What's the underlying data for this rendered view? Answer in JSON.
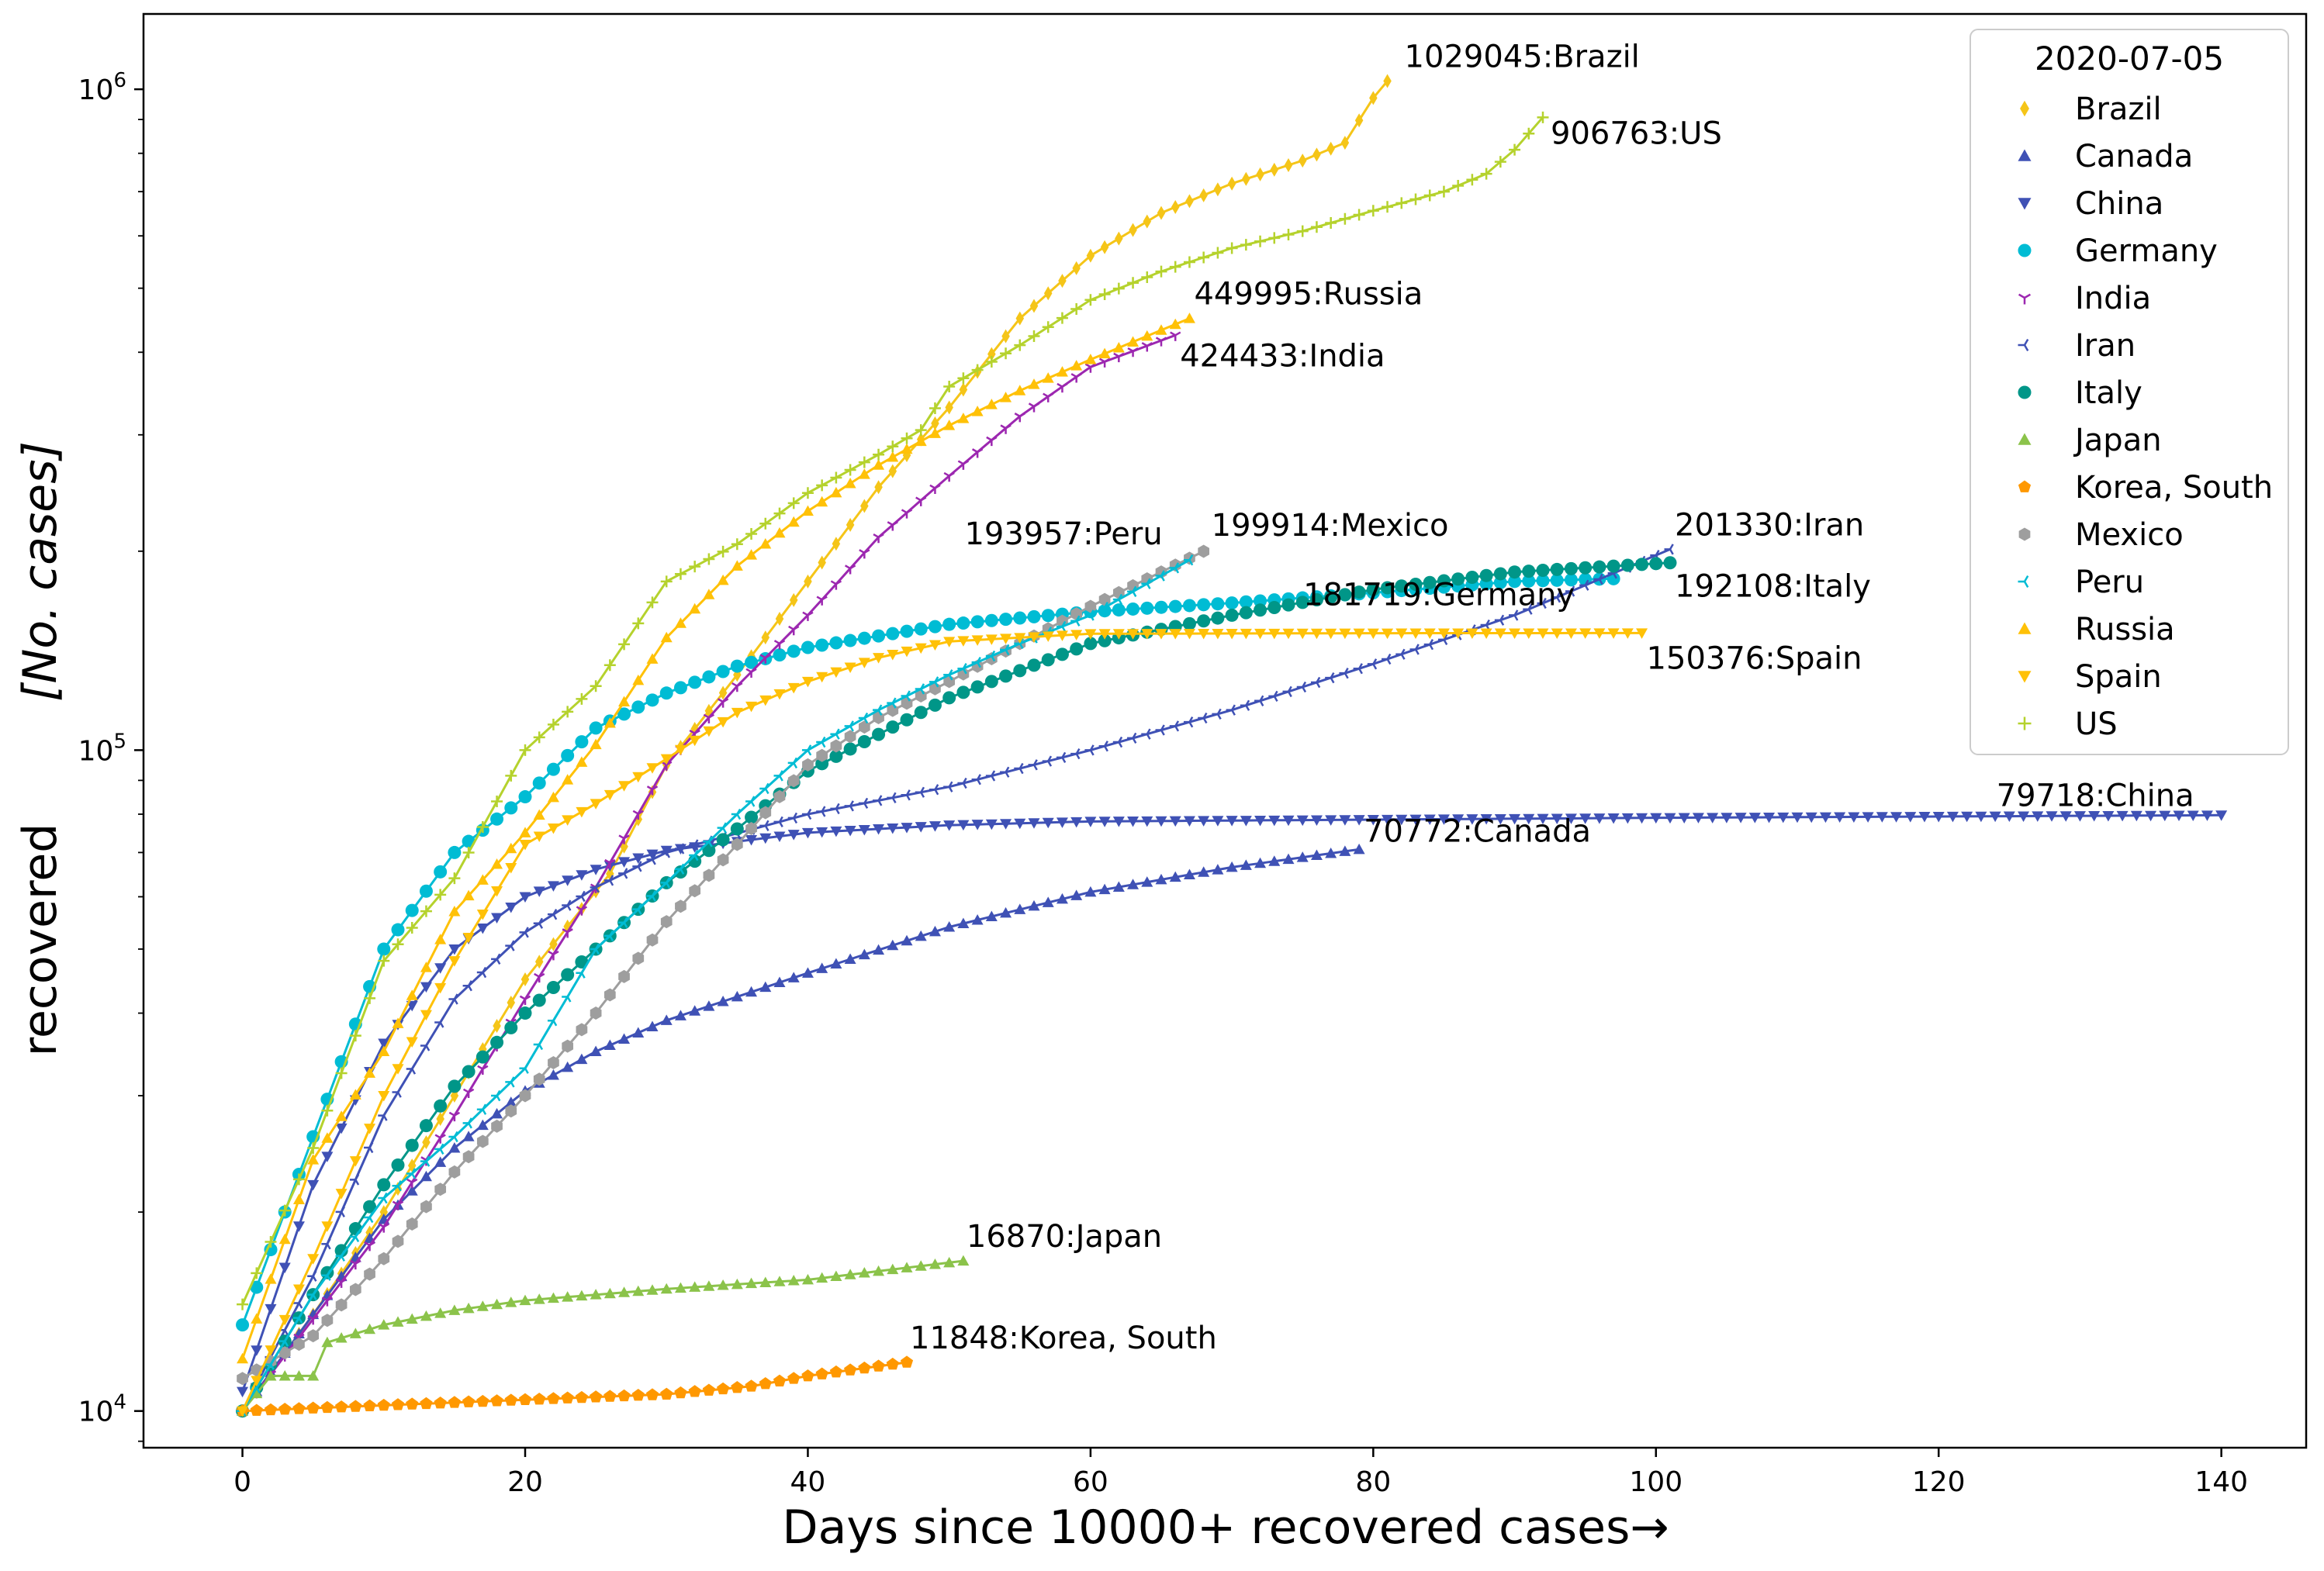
{
  "chart_data": {
    "type": "line",
    "xlabel": "Days since 10000+ recovered cases→",
    "ylabel": "recovered",
    "ylabel_unit": "[No. cases]",
    "xlim": [
      -7,
      146
    ],
    "ylim": [
      8800,
      1300000
    ],
    "yscale": "log",
    "x_ticks": [
      0,
      20,
      40,
      60,
      80,
      100,
      120,
      140
    ],
    "y_ticks": [
      {
        "value": 10000,
        "base": "10",
        "exp": "4"
      },
      {
        "value": 100000,
        "base": "10",
        "exp": "5"
      },
      {
        "value": 1000000,
        "base": "10",
        "exp": "6"
      }
    ],
    "legend": {
      "title": "2020-07-05",
      "position": "top-right"
    },
    "series": [
      {
        "name": "Brazil",
        "color": "#f5c518",
        "marker": "diamond",
        "end_label": "1029045:Brazil",
        "points": [
          [
            0,
            10000
          ],
          [
            5,
            14000
          ],
          [
            10,
            20000
          ],
          [
            15,
            30000
          ],
          [
            20,
            45000
          ],
          [
            26,
            65000
          ],
          [
            30,
            95000
          ],
          [
            35,
            130000
          ],
          [
            40,
            180000
          ],
          [
            45,
            250000
          ],
          [
            50,
            330000
          ],
          [
            55,
            450000
          ],
          [
            60,
            560000
          ],
          [
            65,
            650000
          ],
          [
            70,
            720000
          ],
          [
            75,
            780000
          ],
          [
            78,
            830000
          ],
          [
            80,
            970000
          ],
          [
            81,
            1029045
          ]
        ]
      },
      {
        "name": "Canada",
        "color": "#3f51b5",
        "marker": "triangle-up",
        "end_label": "70772:Canada",
        "points": [
          [
            0,
            10000
          ],
          [
            5,
            14000
          ],
          [
            10,
            19500
          ],
          [
            15,
            25000
          ],
          [
            20,
            30500
          ],
          [
            25,
            35000
          ],
          [
            30,
            39000
          ],
          [
            40,
            46000
          ],
          [
            50,
            54000
          ],
          [
            60,
            61000
          ],
          [
            70,
            66500
          ],
          [
            79,
            70772
          ]
        ]
      },
      {
        "name": "China",
        "color": "#3f51b5",
        "marker": "triangle-down",
        "end_label": "79718:China",
        "points": [
          [
            0,
            10700
          ],
          [
            5,
            22000
          ],
          [
            10,
            36000
          ],
          [
            15,
            50000
          ],
          [
            20,
            60000
          ],
          [
            25,
            66000
          ],
          [
            30,
            70500
          ],
          [
            40,
            75000
          ],
          [
            50,
            77000
          ],
          [
            60,
            78000
          ],
          [
            80,
            78500
          ],
          [
            100,
            79000
          ],
          [
            140,
            79718
          ]
        ]
      },
      {
        "name": "Germany",
        "color": "#00bcd4",
        "marker": "circle",
        "end_label": "181719:Germany",
        "points": [
          [
            0,
            13500
          ],
          [
            5,
            26000
          ],
          [
            10,
            50000
          ],
          [
            15,
            70000
          ],
          [
            20,
            85000
          ],
          [
            25,
            108000
          ],
          [
            30,
            122000
          ],
          [
            35,
            134000
          ],
          [
            40,
            143000
          ],
          [
            50,
            155000
          ],
          [
            60,
            162000
          ],
          [
            70,
            167000
          ],
          [
            80,
            173000
          ],
          [
            90,
            180000
          ],
          [
            97,
            181719
          ]
        ]
      },
      {
        "name": "India",
        "color": "#9c27b0",
        "marker": "tri-down",
        "end_label": "424433:India",
        "points": [
          [
            0,
            10000
          ],
          [
            10,
            19000
          ],
          [
            15,
            28000
          ],
          [
            20,
            42000
          ],
          [
            25,
            62000
          ],
          [
            30,
            95000
          ],
          [
            35,
            125000
          ],
          [
            40,
            160000
          ],
          [
            45,
            210000
          ],
          [
            50,
            260000
          ],
          [
            55,
            320000
          ],
          [
            60,
            380000
          ],
          [
            66,
            424433
          ]
        ]
      },
      {
        "name": "Iran",
        "color": "#3f51b5",
        "marker": "tri-left",
        "end_label": "201330:Iran",
        "points": [
          [
            0,
            10000
          ],
          [
            5,
            16000
          ],
          [
            10,
            28000
          ],
          [
            15,
            42000
          ],
          [
            20,
            53000
          ],
          [
            25,
            62000
          ],
          [
            30,
            70000
          ],
          [
            40,
            80000
          ],
          [
            50,
            88000
          ],
          [
            60,
            100000
          ],
          [
            70,
            115000
          ],
          [
            80,
            135000
          ],
          [
            90,
            160000
          ],
          [
            101,
            201330
          ]
        ]
      },
      {
        "name": "Italy",
        "color": "#009688",
        "marker": "circle",
        "end_label": "192108:Italy",
        "points": [
          [
            0,
            10000
          ],
          [
            5,
            15000
          ],
          [
            10,
            22000
          ],
          [
            15,
            31000
          ],
          [
            20,
            40000
          ],
          [
            25,
            50000
          ],
          [
            30,
            63000
          ],
          [
            35,
            76000
          ],
          [
            40,
            93000
          ],
          [
            50,
            120000
          ],
          [
            60,
            145000
          ],
          [
            70,
            160000
          ],
          [
            80,
            175000
          ],
          [
            90,
            186000
          ],
          [
            101,
            192108
          ]
        ]
      },
      {
        "name": "Japan",
        "color": "#8bc34a",
        "marker": "triangle-up",
        "end_label": "16870:Japan",
        "points": [
          [
            0,
            10000
          ],
          [
            2,
            11300
          ],
          [
            5,
            11300
          ],
          [
            6,
            12700
          ],
          [
            10,
            13500
          ],
          [
            15,
            14200
          ],
          [
            20,
            14700
          ],
          [
            30,
            15300
          ],
          [
            40,
            15800
          ],
          [
            51,
            16870
          ]
        ]
      },
      {
        "name": "Korea, South",
        "color": "#ff9800",
        "marker": "pentagon",
        "end_label": "11848:Korea, South",
        "points": [
          [
            0,
            10000
          ],
          [
            10,
            10200
          ],
          [
            20,
            10400
          ],
          [
            30,
            10600
          ],
          [
            36,
            10900
          ],
          [
            40,
            11300
          ],
          [
            47,
            11848
          ]
        ]
      },
      {
        "name": "Mexico",
        "color": "#9e9e9e",
        "marker": "hexagon",
        "end_label": "199914:Mexico",
        "points": [
          [
            0,
            11200
          ],
          [
            5,
            13000
          ],
          [
            10,
            17000
          ],
          [
            15,
            23000
          ],
          [
            20,
            30000
          ],
          [
            25,
            40000
          ],
          [
            30,
            55000
          ],
          [
            35,
            72000
          ],
          [
            40,
            95000
          ],
          [
            45,
            112000
          ],
          [
            50,
            127000
          ],
          [
            55,
            145000
          ],
          [
            60,
            165000
          ],
          [
            68,
            199914
          ]
        ]
      },
      {
        "name": "Peru",
        "color": "#00bcd4",
        "marker": "tri-left",
        "end_label": "193957:Peru",
        "points": [
          [
            0,
            10000
          ],
          [
            5,
            15000
          ],
          [
            10,
            21000
          ],
          [
            15,
            26000
          ],
          [
            20,
            33000
          ],
          [
            25,
            50000
          ],
          [
            30,
            63000
          ],
          [
            35,
            80000
          ],
          [
            40,
            100000
          ],
          [
            45,
            115000
          ],
          [
            50,
            130000
          ],
          [
            55,
            145000
          ],
          [
            60,
            160000
          ],
          [
            67,
            193957
          ]
        ]
      },
      {
        "name": "Russia",
        "color": "#ffc107",
        "marker": "triangle-up",
        "end_label": "449995:Russia",
        "points": [
          [
            0,
            12000
          ],
          [
            5,
            24000
          ],
          [
            10,
            35000
          ],
          [
            15,
            57000
          ],
          [
            20,
            75000
          ],
          [
            25,
            102000
          ],
          [
            30,
            148000
          ],
          [
            35,
            190000
          ],
          [
            40,
            230000
          ],
          [
            45,
            270000
          ],
          [
            50,
            310000
          ],
          [
            55,
            350000
          ],
          [
            60,
            390000
          ],
          [
            67,
            449995
          ]
        ]
      },
      {
        "name": "Spain",
        "color": "#ffc107",
        "marker": "triangle-down",
        "end_label": "150376:Spain",
        "points": [
          [
            0,
            10000
          ],
          [
            5,
            17000
          ],
          [
            10,
            30000
          ],
          [
            15,
            48000
          ],
          [
            20,
            72000
          ],
          [
            25,
            83000
          ],
          [
            30,
            97000
          ],
          [
            35,
            114000
          ],
          [
            40,
            127000
          ],
          [
            45,
            138000
          ],
          [
            50,
            146000
          ],
          [
            60,
            150000
          ],
          [
            80,
            150300
          ],
          [
            99,
            150376
          ]
        ]
      },
      {
        "name": "US",
        "color": "#b5d22d",
        "marker": "plus",
        "end_label": "906763:US",
        "points": [
          [
            0,
            14500
          ],
          [
            5,
            25000
          ],
          [
            10,
            48000
          ],
          [
            15,
            64000
          ],
          [
            20,
            100000
          ],
          [
            25,
            125000
          ],
          [
            30,
            180000
          ],
          [
            35,
            205000
          ],
          [
            40,
            245000
          ],
          [
            45,
            280000
          ],
          [
            48,
            305000
          ],
          [
            50,
            355000
          ],
          [
            55,
            410000
          ],
          [
            60,
            480000
          ],
          [
            65,
            530000
          ],
          [
            70,
            575000
          ],
          [
            75,
            610000
          ],
          [
            80,
            655000
          ],
          [
            85,
            700000
          ],
          [
            88,
            745000
          ],
          [
            90,
            810000
          ],
          [
            92,
            906763
          ]
        ]
      }
    ]
  }
}
